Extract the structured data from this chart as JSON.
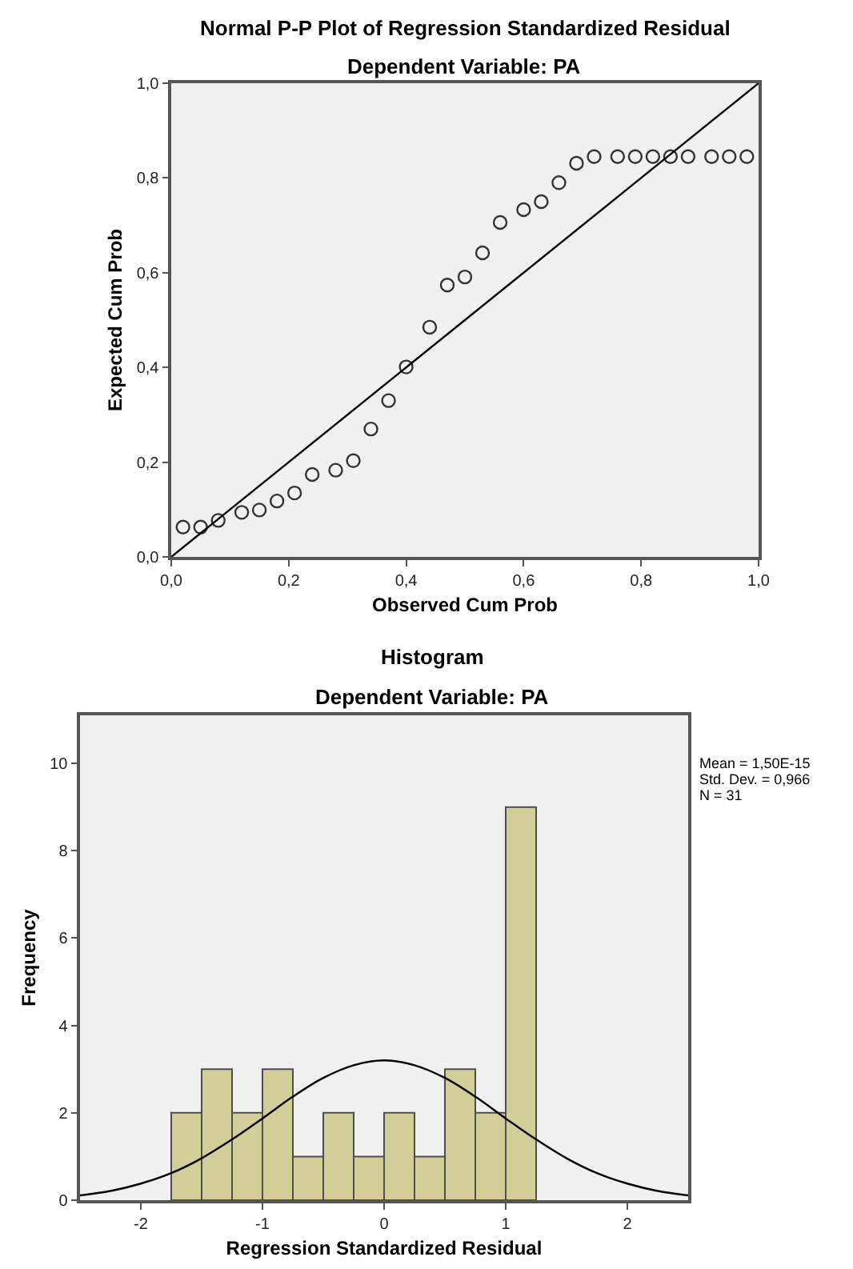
{
  "chart_data": [
    {
      "type": "scatter",
      "title": "Normal P-P Plot of Regression Standardized Residual",
      "subtitle": "Dependent Variable: PA",
      "xlabel": "Observed Cum Prob",
      "ylabel": "Expected Cum Prob",
      "xlim": [
        0,
        1
      ],
      "ylim": [
        0,
        1
      ],
      "xticks": [
        {
          "value": 0,
          "label": "0,0"
        },
        {
          "value": 0.2,
          "label": "0,2"
        },
        {
          "value": 0.4,
          "label": "0,4"
        },
        {
          "value": 0.6,
          "label": "0,6"
        },
        {
          "value": 0.8,
          "label": "0,8"
        },
        {
          "value": 1,
          "label": "1,0"
        }
      ],
      "yticks": [
        {
          "value": 0,
          "label": "0,0"
        },
        {
          "value": 0.2,
          "label": "0,2"
        },
        {
          "value": 0.4,
          "label": "0,4"
        },
        {
          "value": 0.6,
          "label": "0,6"
        },
        {
          "value": 0.8,
          "label": "0,8"
        },
        {
          "value": 1,
          "label": "1,0"
        }
      ],
      "grid": false,
      "series": [
        {
          "type": "scatter",
          "marker": "circle",
          "color": "#333333",
          "x": [
            0.02,
            0.05,
            0.08,
            0.12,
            0.15,
            0.18,
            0.21,
            0.24,
            0.28,
            0.31,
            0.34,
            0.37,
            0.4,
            0.44,
            0.47,
            0.5,
            0.53,
            0.56,
            0.6,
            0.63,
            0.66,
            0.69,
            0.72,
            0.76,
            0.79,
            0.82,
            0.85,
            0.88,
            0.92,
            0.95,
            0.98
          ],
          "values": [
            0.063,
            0.063,
            0.077,
            0.094,
            0.099,
            0.118,
            0.135,
            0.174,
            0.183,
            0.203,
            0.27,
            0.33,
            0.401,
            0.485,
            0.574,
            0.591,
            0.642,
            0.706,
            0.733,
            0.75,
            0.79,
            0.831,
            0.845,
            0.845,
            0.845,
            0.845,
            0.845,
            0.845,
            0.845,
            0.845,
            0.845
          ]
        },
        {
          "type": "line",
          "color": "#000000",
          "x": [
            0,
            1
          ],
          "values": [
            0,
            1
          ]
        }
      ]
    },
    {
      "type": "histogram",
      "title": "Histogram",
      "subtitle": "Dependent Variable: PA",
      "xlabel": "Regression Standardized Residual",
      "ylabel": "Frequency",
      "xlim": [
        -2.5,
        2.5
      ],
      "ylim": [
        0,
        11.1
      ],
      "xticks": [
        -2,
        -1,
        0,
        1,
        2
      ],
      "yticks": [
        0,
        2,
        4,
        6,
        8,
        10
      ],
      "grid": false,
      "color": "#d3ce97",
      "bins": [
        -1.75,
        -1.5,
        -1.25,
        -1.0,
        -0.75,
        -0.5,
        -0.25,
        0,
        0.25,
        0.5,
        0.75,
        1.0,
        1.25
      ],
      "values": [
        2,
        3,
        2,
        3,
        1,
        2,
        1,
        2,
        1,
        3,
        2,
        9
      ],
      "annotations": [
        "Mean = 1,50E-15",
        "Std. Dev. = 0,966",
        "N = 31"
      ],
      "series": [
        {
          "type": "line",
          "color": "#000000",
          "x": [
            -2.5,
            -2.25,
            -2,
            -1.75,
            -1.5,
            -1.25,
            -1,
            -0.75,
            -0.5,
            -0.25,
            0,
            0.25,
            0.5,
            0.75,
            1,
            1.25,
            1.5,
            1.75,
            2,
            2.25,
            2.5
          ],
          "values": [
            0.11,
            0.21,
            0.38,
            0.62,
            0.96,
            1.39,
            1.87,
            2.37,
            2.8,
            3.09,
            3.2,
            3.09,
            2.8,
            2.37,
            1.87,
            1.39,
            0.96,
            0.62,
            0.38,
            0.21,
            0.11
          ]
        }
      ]
    }
  ]
}
